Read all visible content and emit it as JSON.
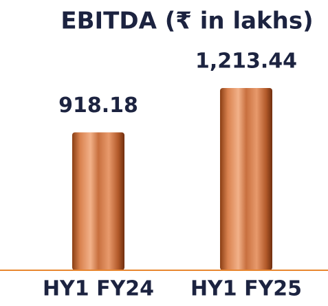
{
  "chart_data": {
    "type": "bar",
    "title": "EBITDA (₹ in lakhs)",
    "categories": [
      "HY1 FY24",
      "HY1 FY25"
    ],
    "values": [
      918.18,
      1213.44
    ],
    "value_labels": [
      "918.18",
      "1,213.44"
    ]
  }
}
